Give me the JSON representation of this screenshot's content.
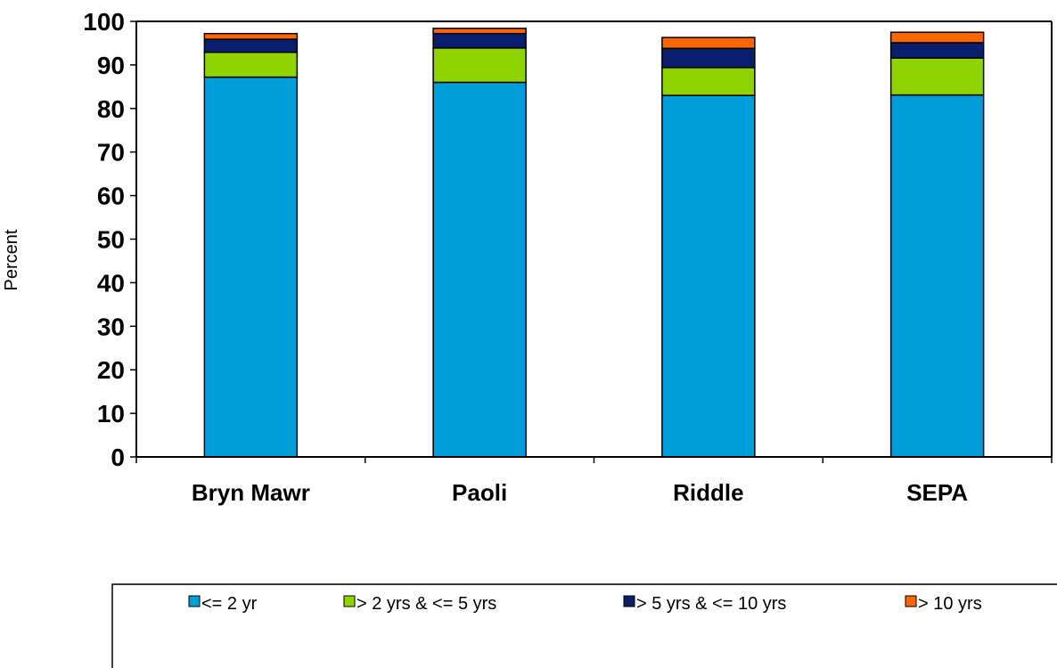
{
  "chart_data": {
    "type": "bar",
    "stacked": true,
    "categories": [
      "Bryn Mawr",
      "Paoli",
      "Riddle",
      "SEPA"
    ],
    "series": [
      {
        "name": "<= 2 yr",
        "color": "#009ED8",
        "values": [
          87.2,
          86.0,
          83.0,
          83.1
        ]
      },
      {
        "name": "> 2 yrs & <= 5 yrs",
        "color": "#8FD400",
        "values": [
          5.7,
          7.9,
          6.4,
          8.5
        ]
      },
      {
        "name": "> 5 yrs & <= 10 yrs",
        "color": "#0A1E6E",
        "values": [
          3.0,
          3.3,
          4.4,
          3.5
        ]
      },
      {
        "name": "> 10 yrs",
        "color": "#FF6600",
        "values": [
          1.3,
          1.2,
          2.5,
          2.4
        ]
      }
    ],
    "title": "",
    "xlabel": "",
    "ylabel": "Percent",
    "ylim": [
      0,
      100
    ],
    "yticks": [
      0,
      10,
      20,
      30,
      40,
      50,
      60,
      70,
      80,
      90,
      100
    ],
    "grid": false,
    "legend": "bottom"
  }
}
